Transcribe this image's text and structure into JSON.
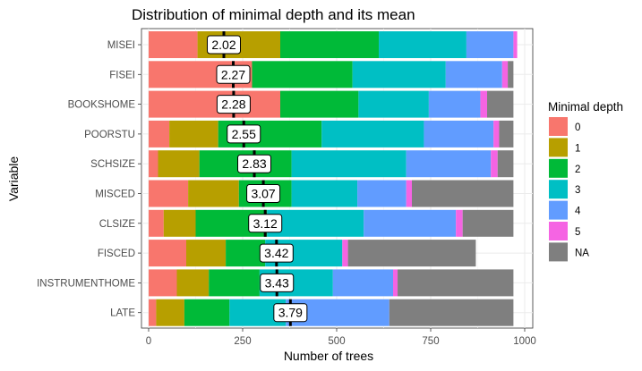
{
  "chart_data": {
    "type": "bar",
    "orientation": "horizontal",
    "stacked": true,
    "title": "Distribution of minimal depth and its mean",
    "xlabel": "Number of trees",
    "ylabel": "Variable",
    "xlim": [
      0,
      1000
    ],
    "xticks": [
      "0",
      "250",
      "500",
      "750",
      "1000"
    ],
    "xtick_values": [
      0,
      250,
      500,
      750,
      1000
    ],
    "grid": true,
    "legend_position": "right",
    "legend_title": "Minimal depth",
    "categories": [
      "MISEI",
      "FISEI",
      "BOOKSHOME",
      "POORSTU",
      "SCHSIZE",
      "MISCED",
      "CLSIZE",
      "FISCED",
      "INSTRUMENTHOME",
      "LATE"
    ],
    "series": [
      {
        "name": "0",
        "color": "#F8766D",
        "values": [
          130,
          275,
          350,
          55,
          25,
          105,
          40,
          100,
          75,
          20
        ]
      },
      {
        "name": "1",
        "color": "#B79F00",
        "values": [
          220,
          0,
          0,
          130,
          110,
          135,
          85,
          105,
          85,
          75
        ]
      },
      {
        "name": "2",
        "color": "#00BA38",
        "values": [
          262,
          267,
          208,
          275,
          245,
          140,
          190,
          105,
          135,
          120
        ]
      },
      {
        "name": "3",
        "color": "#00BFC4",
        "values": [
          233,
          248,
          187,
          272,
          305,
          175,
          257,
          205,
          195,
          150
        ]
      },
      {
        "name": "4",
        "color": "#619CFF",
        "values": [
          125,
          150,
          137,
          185,
          225,
          130,
          245,
          0,
          160,
          275
        ]
      },
      {
        "name": "5",
        "color": "#F564E3",
        "values": [
          10,
          15,
          18,
          15,
          18,
          15,
          18,
          15,
          12,
          0
        ]
      },
      {
        "name": "NA",
        "color": "#7F7F7F",
        "values": [
          0,
          15,
          70,
          38,
          42,
          270,
          135,
          340,
          308,
          330
        ]
      }
    ],
    "means": [
      2.02,
      2.27,
      2.28,
      2.55,
      2.83,
      3.07,
      3.12,
      3.42,
      3.43,
      3.79
    ],
    "mean_labels": [
      "2.02",
      "2.27",
      "2.28",
      "2.55",
      "2.83",
      "3.07",
      "3.12",
      "3.42",
      "3.43",
      "3.79"
    ]
  }
}
